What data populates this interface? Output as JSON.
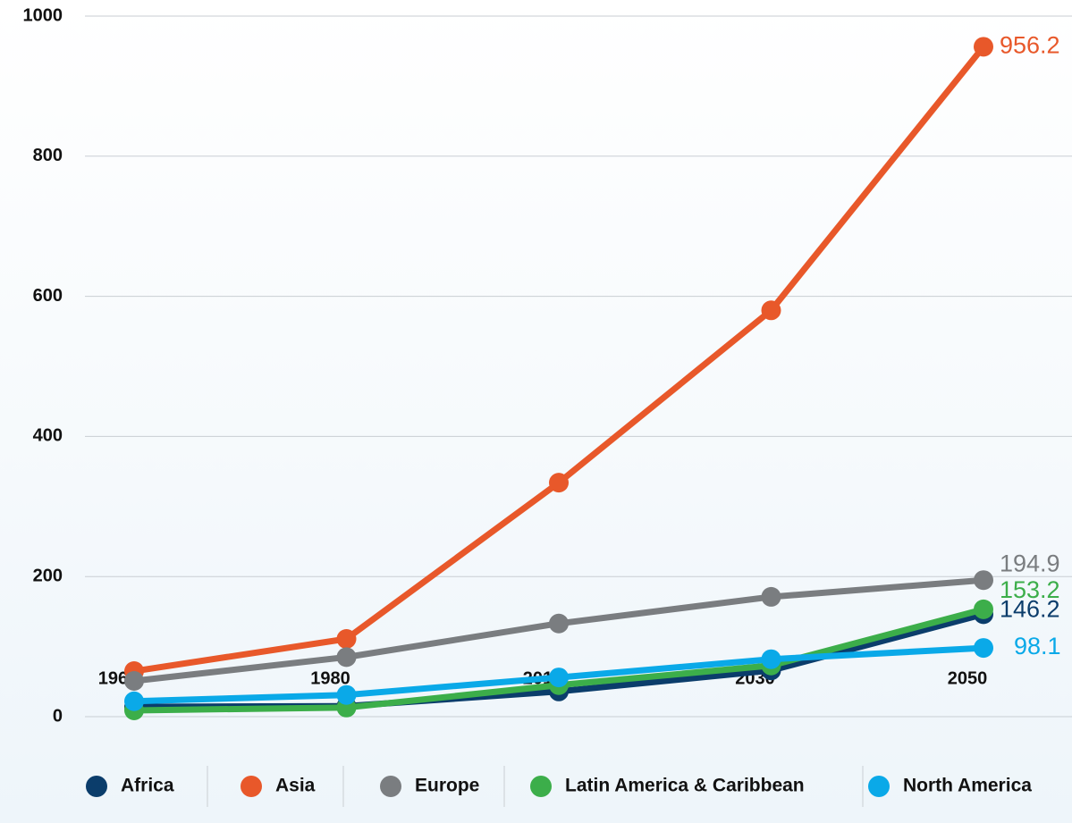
{
  "chart_data": {
    "type": "line",
    "categories": [
      "1960",
      "1980",
      "2015",
      "2030",
      "2050"
    ],
    "series": [
      {
        "name": "Africa",
        "color": "#0b3d6b",
        "values": [
          14,
          15,
          36,
          66,
          146.2
        ]
      },
      {
        "name": "Asia",
        "color": "#e8582a",
        "values": [
          65,
          111,
          334,
          580,
          956.2
        ]
      },
      {
        "name": "Europe",
        "color": "#7a7d80",
        "values": [
          51,
          85,
          133,
          171,
          194.9
        ]
      },
      {
        "name": "Latin America & Caribbean",
        "color": "#3cae4a",
        "values": [
          9,
          13,
          45,
          73,
          153.2
        ]
      },
      {
        "name": "North America",
        "color": "#0aa9e8",
        "values": [
          22,
          31,
          56,
          82,
          98.1
        ]
      }
    ],
    "ylim": [
      0,
      1000
    ],
    "yticks": [
      0,
      200,
      400,
      600,
      800,
      1000
    ],
    "grid": true,
    "legend": "bottom"
  }
}
